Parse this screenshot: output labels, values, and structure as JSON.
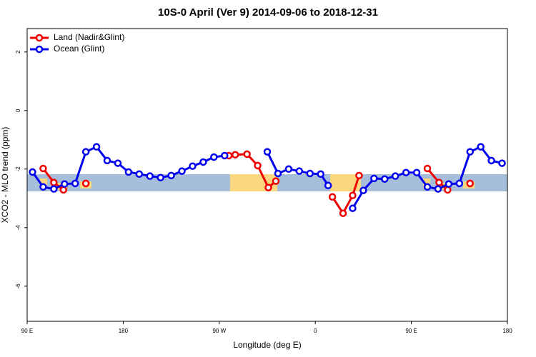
{
  "chart_data": {
    "type": "line",
    "title": "10S-0 April (Ver 9)   2014-09-06 to 2018-12-31",
    "x_label": "Longitude (deg E)",
    "y_label": "XCO2 - MLO trend (ppm)",
    "xlim": [
      90,
      540
    ],
    "ylim": [
      -7.2,
      2.8
    ],
    "xticks": [
      {
        "value": 90,
        "label": "90 E"
      },
      180,
      {
        "value": 270,
        "label": "90 W"
      },
      {
        "value": 360,
        "label": "0"
      },
      {
        "value": 450,
        "label": "90 E"
      },
      {
        "value": 540,
        "label": "180"
      }
    ],
    "yticks": [
      -6,
      -4,
      -2,
      0,
      2
    ],
    "legend": "top-left",
    "series": [
      {
        "name": "Land (Nadir&Glint)",
        "color": "#ee0000",
        "x": [
          105,
          115,
          124,
          135,
          145,
          200,
          279,
          285,
          296,
          306,
          316,
          323,
          350,
          376,
          386,
          395,
          401,
          430,
          465,
          476,
          484,
          495,
          505
        ],
        "values": [
          -1.98,
          -2.46,
          -2.71,
          null,
          -2.49,
          null,
          -1.54,
          -1.51,
          -1.49,
          -1.88,
          -2.63,
          -2.41,
          null,
          -2.95,
          -3.51,
          -2.9,
          -2.22,
          null,
          -1.98,
          -2.46,
          -2.71,
          null,
          -2.49
        ]
      },
      {
        "name": "Ocean (Glint)",
        "color": "#0000ee",
        "x": [
          95,
          105,
          115,
          125,
          135,
          145,
          155,
          165,
          175,
          185,
          195,
          205,
          215,
          225,
          235,
          245,
          255,
          265,
          275,
          285,
          315,
          325,
          335,
          345,
          355,
          365,
          372,
          385,
          395,
          405,
          415,
          425,
          435,
          445,
          455,
          465,
          475,
          485,
          495,
          505,
          515,
          525,
          535
        ],
        "values": [
          -2.1,
          -2.61,
          -2.68,
          -2.51,
          -2.49,
          -1.41,
          -1.24,
          -1.71,
          -1.8,
          -2.1,
          -2.17,
          -2.24,
          -2.29,
          -2.22,
          -2.07,
          -1.9,
          -1.76,
          -1.59,
          -1.54,
          null,
          -1.41,
          -2.15,
          -2.0,
          -2.07,
          -2.15,
          -2.17,
          -2.56,
          null,
          -3.34,
          -2.73,
          -2.32,
          -2.34,
          -2.24,
          -2.12,
          -2.12,
          -2.61,
          -2.68,
          -2.51,
          -2.49,
          -1.41,
          -1.24,
          -1.71,
          -1.8
        ]
      }
    ]
  }
}
